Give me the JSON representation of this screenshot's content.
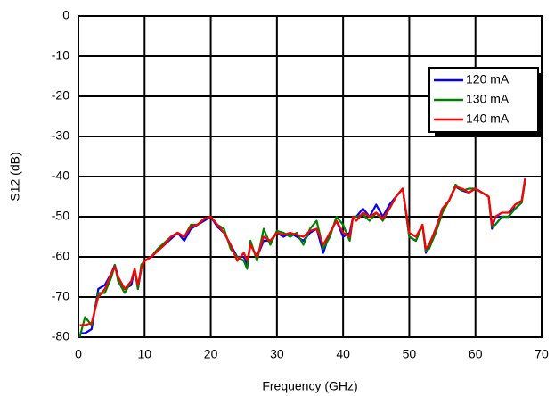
{
  "chart_data": {
    "type": "line",
    "xlabel": "Frequency (GHz)",
    "ylabel": "S12 (dB)",
    "x": [
      0.2,
      1,
      2,
      3,
      4,
      5,
      5.5,
      6,
      7,
      8,
      8.5,
      9,
      9.5,
      10,
      11,
      12,
      13,
      14,
      15,
      16,
      17,
      18,
      19,
      20,
      21,
      22,
      23,
      24,
      25,
      25.5,
      26,
      27,
      28,
      29,
      30,
      31,
      32,
      33,
      34,
      35,
      36,
      37,
      38,
      39,
      40,
      41,
      41.5,
      42,
      43,
      44,
      45,
      46,
      47,
      48,
      49,
      50,
      51,
      52,
      52.5,
      53,
      54,
      55,
      56,
      57,
      58,
      59,
      60,
      61,
      62,
      62.5,
      63,
      64,
      65,
      66,
      67,
      67.5
    ],
    "series": [
      {
        "name": "120 mA",
        "color": "#0000ff",
        "values": [
          -79,
          -79,
          -78,
          -68,
          -67,
          -64,
          -62,
          -65,
          -68,
          -67,
          -63,
          -68,
          -63,
          -61,
          -60,
          -58.5,
          -57,
          -55.5,
          -54,
          -56,
          -53,
          -52,
          -51,
          -50,
          -52.5,
          -54,
          -57,
          -60,
          -60,
          -62,
          -57,
          -60,
          -56,
          -56,
          -54,
          -55,
          -54,
          -55,
          -56,
          -54,
          -53,
          -59,
          -54,
          -51,
          -55,
          -54,
          -50,
          -50,
          -48,
          -50,
          -47,
          -50,
          -47,
          -45,
          -43,
          -55,
          -56,
          -52,
          -59,
          -57,
          -53,
          -48,
          -46,
          -42.5,
          -43.5,
          -44,
          -43,
          -44,
          -45,
          -53,
          -50,
          -50,
          -50,
          -47,
          -46,
          -40.5
        ]
      },
      {
        "name": "130 mA",
        "color": "#008000",
        "values": [
          -80,
          -75,
          -77,
          -69,
          -69,
          -65,
          -62,
          -66,
          -69,
          -66,
          -63,
          -68,
          -62,
          -61,
          -60,
          -58,
          -56.5,
          -55,
          -54,
          -55,
          -52,
          -52,
          -50.5,
          -50,
          -52,
          -53,
          -58,
          -60,
          -61,
          -63,
          -56,
          -61,
          -53,
          -57,
          -53.5,
          -54,
          -55,
          -54,
          -57,
          -53,
          -51,
          -58,
          -55,
          -50,
          -52,
          -56,
          -50,
          -50,
          -49.5,
          -51,
          -49,
          -51,
          -48,
          -45,
          -43,
          -55,
          -56,
          -52,
          -58.5,
          -58,
          -54,
          -49,
          -46,
          -42,
          -43.5,
          -43,
          -43,
          -44,
          -45,
          -52.5,
          -52,
          -50,
          -50,
          -48,
          -46.5,
          -41
        ]
      },
      {
        "name": "140 mA",
        "color": "#ff0000",
        "values": [
          -77,
          -77,
          -76.5,
          -70,
          -68,
          -64,
          -62.5,
          -65,
          -68,
          -66,
          -63,
          -67,
          -63,
          -61,
          -60,
          -58.5,
          -57,
          -55,
          -54,
          -55,
          -52.5,
          -52,
          -50.5,
          -50,
          -52,
          -54,
          -57,
          -61,
          -59,
          -61,
          -57,
          -60,
          -55,
          -56,
          -54,
          -54.5,
          -54,
          -54.5,
          -55,
          -53.5,
          -53,
          -57,
          -54,
          -51,
          -54,
          -55,
          -50,
          -51,
          -49,
          -50,
          -49,
          -50.5,
          -48,
          -45,
          -43,
          -54,
          -55,
          -52,
          -58,
          -57,
          -53,
          -48,
          -46,
          -42.5,
          -43,
          -44,
          -43,
          -44,
          -45,
          -52,
          -50,
          -49,
          -49,
          -47,
          -46,
          -40.5
        ]
      }
    ],
    "xlim": [
      0,
      70
    ],
    "xticks": [
      0,
      10,
      20,
      30,
      40,
      50,
      60,
      70
    ],
    "ylim": [
      -80,
      0
    ],
    "yticks": [
      -80,
      -70,
      -60,
      -50,
      -40,
      -30,
      -20,
      -10,
      0
    ],
    "grid": true,
    "legend": "upper right"
  }
}
